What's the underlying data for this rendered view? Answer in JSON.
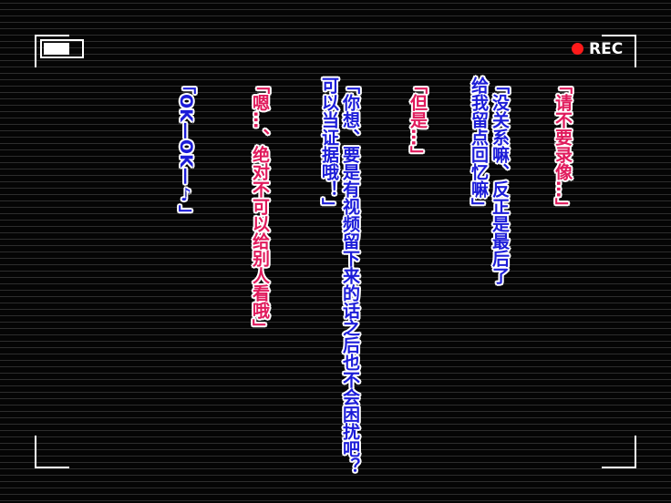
{
  "hud": {
    "rec": "REC"
  },
  "dialogue": [
    {
      "lines": [
        "「请不要录像…」"
      ]
    },
    {
      "lines": [
        "「没关系嘛、反正是最后了",
        "给我留点回忆嘛」"
      ]
    },
    {
      "lines": [
        "「但是…」"
      ]
    },
    {
      "lines": [
        "「你想、要是有视频留下来的话之后也不会困扰吧？",
        "可以当证据哦！」"
      ]
    },
    {
      "lines": [
        "「嗯…、绝对不可以给别人看哦」"
      ]
    },
    {
      "lines": [
        "「OK—OK—♪」"
      ]
    }
  ]
}
